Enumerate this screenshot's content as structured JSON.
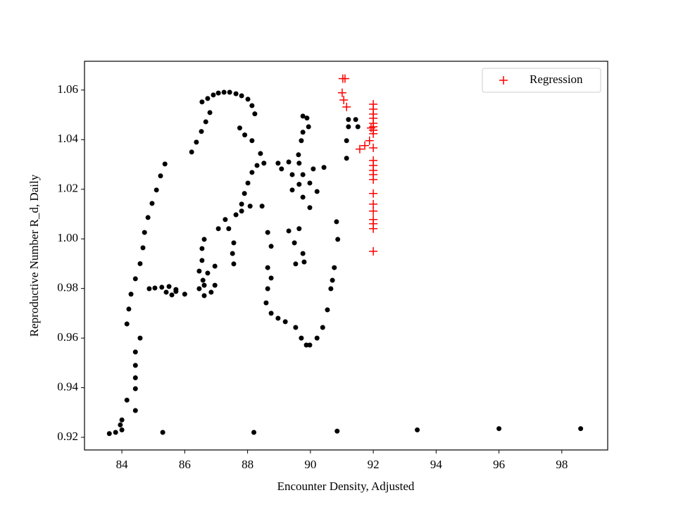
{
  "chart_data": {
    "type": "scatter",
    "xlabel": "Encounter Density, Adjusted",
    "ylabel": "Reproductive Number R_d, Daily",
    "xlim": [
      82.81,
      99.46
    ],
    "ylim": [
      0.9149,
      1.0716
    ],
    "xticks": [
      84,
      86,
      88,
      90,
      92,
      94,
      96,
      98
    ],
    "yticks": [
      0.92,
      0.94,
      0.96,
      0.98,
      {
        "value": 1,
        "label": "1.00"
      },
      1.02,
      1.04,
      1.06
    ],
    "legend": "upper right",
    "series": [
      {
        "color": "#000000",
        "marker": "circle",
        "x": [
          83.6,
          83.8,
          84.0,
          85.3,
          88.2,
          90.85,
          93.4,
          96.0,
          98.6,
          83.95,
          84.0,
          84.43,
          84.16,
          84.43,
          84.43,
          84.43,
          84.43,
          84.58,
          84.16,
          84.22,
          84.29,
          84.43,
          84.58,
          84.67,
          84.72,
          84.83,
          84.96,
          85.1,
          85.23,
          85.37,
          84.87,
          85.05,
          85.27,
          85.5,
          85.72,
          85.41,
          85.59,
          85.72,
          86.0,
          86.22,
          86.37,
          86.53,
          86.67,
          86.8,
          86.55,
          86.73,
          86.91,
          87.07,
          87.25,
          87.43,
          87.63,
          87.81,
          88.01,
          88.14,
          88.23,
          87.75,
          87.91,
          88.14,
          88.41,
          88.52,
          88.3,
          88.14,
          88.01,
          87.9,
          87.81,
          87.81,
          88.08,
          88.46,
          87.63,
          87.29,
          87.07,
          87.4,
          87.56,
          87.52,
          87.56,
          86.96,
          86.73,
          86.58,
          86.55,
          86.55,
          86.62,
          86.84,
          86.62,
          86.96,
          86.46,
          86.46,
          86.62,
          88.97,
          89.31,
          89.64,
          89.08,
          89.42,
          89.76,
          90.09,
          90.43,
          89.42,
          89.64,
          89.98,
          90.21,
          89.76,
          89.98,
          89.64,
          89.31,
          89.49,
          89.76,
          89.53,
          89.8,
          89.76,
          89.94,
          89.71,
          89.62,
          89.89,
          89.76,
          88.64,
          88.75,
          88.64,
          88.75,
          88.64,
          88.59,
          88.75,
          88.97,
          89.2,
          89.53,
          89.71,
          89.87,
          89.98,
          90.21,
          90.39,
          90.54,
          90.65,
          90.76,
          90.87,
          90.83,
          90.7,
          91.15,
          91.15,
          91.21,
          91.21,
          91.44,
          91.51
        ],
        "values": [
          0.9215,
          0.922,
          0.923,
          0.922,
          0.922,
          0.9225,
          0.923,
          0.9235,
          0.9235,
          0.925,
          0.927,
          0.9308,
          0.935,
          0.9396,
          0.944,
          0.949,
          0.9544,
          0.96,
          0.9657,
          0.9717,
          0.9777,
          0.9839,
          0.99,
          0.9964,
          1.0026,
          1.0086,
          1.0143,
          1.0197,
          1.0254,
          1.0302,
          0.9799,
          0.9802,
          0.9805,
          0.9808,
          0.9796,
          0.9785,
          0.9774,
          0.9788,
          0.9777,
          1.035,
          1.039,
          1.0433,
          1.0472,
          1.0509,
          1.0552,
          1.0566,
          1.058,
          1.0588,
          1.0591,
          1.0591,
          1.0585,
          1.0577,
          1.0563,
          1.0537,
          1.0504,
          1.0447,
          1.0419,
          1.0396,
          1.0344,
          1.0305,
          1.0296,
          1.0268,
          1.0225,
          1.0183,
          1.014,
          1.0112,
          1.0132,
          1.0132,
          1.0097,
          1.0078,
          1.0041,
          1.0041,
          0.9984,
          0.9941,
          0.9899,
          0.989,
          0.9862,
          0.9833,
          0.9961,
          0.9913,
          0.9813,
          0.9785,
          0.9771,
          0.9813,
          0.9799,
          0.987,
          0.9998,
          1.0305,
          1.031,
          1.0305,
          1.0282,
          1.0259,
          1.0259,
          1.0282,
          1.0288,
          1.0197,
          1.022,
          1.0225,
          1.0191,
          1.0168,
          1.0126,
          1.0041,
          1.0032,
          0.9984,
          0.9941,
          0.9899,
          0.9907,
          1.0495,
          1.0452,
          1.0396,
          1.0339,
          1.0487,
          1.043,
          1.0026,
          0.997,
          0.9884,
          0.9842,
          0.9799,
          0.9742,
          0.97,
          0.968,
          0.9666,
          0.9643,
          0.96,
          0.9572,
          0.9572,
          0.96,
          0.9643,
          0.9714,
          0.9799,
          0.9884,
          0.9998,
          1.0069,
          0.9833,
          1.0325,
          1.0396,
          1.0452,
          1.0481,
          1.0481,
          1.0452
        ]
      },
      {
        "name": "Regression",
        "color": "#ff0000",
        "marker": "plus",
        "x": [
          91.1,
          91.03,
          91.01,
          91.06,
          91.15,
          91.57,
          91.73,
          91.88,
          92.0,
          91.93,
          92,
          92,
          92,
          92,
          92,
          92,
          92,
          92,
          92,
          92,
          92,
          92,
          92,
          92,
          92,
          92,
          92,
          92,
          92,
          92,
          92
        ],
        "values": [
          1.0646,
          1.0646,
          1.0589,
          1.056,
          1.0532,
          1.0362,
          1.0376,
          1.0396,
          1.0438,
          1.0447,
          1.0543,
          1.0523,
          1.0503,
          1.0486,
          1.0466,
          1.0452,
          1.0438,
          1.0424,
          1.0367,
          1.0316,
          1.0296,
          1.0276,
          1.0259,
          1.0239,
          1.0183,
          1.014,
          1.0112,
          1.0078,
          1.0061,
          1.0041,
          0.995
        ]
      }
    ]
  }
}
